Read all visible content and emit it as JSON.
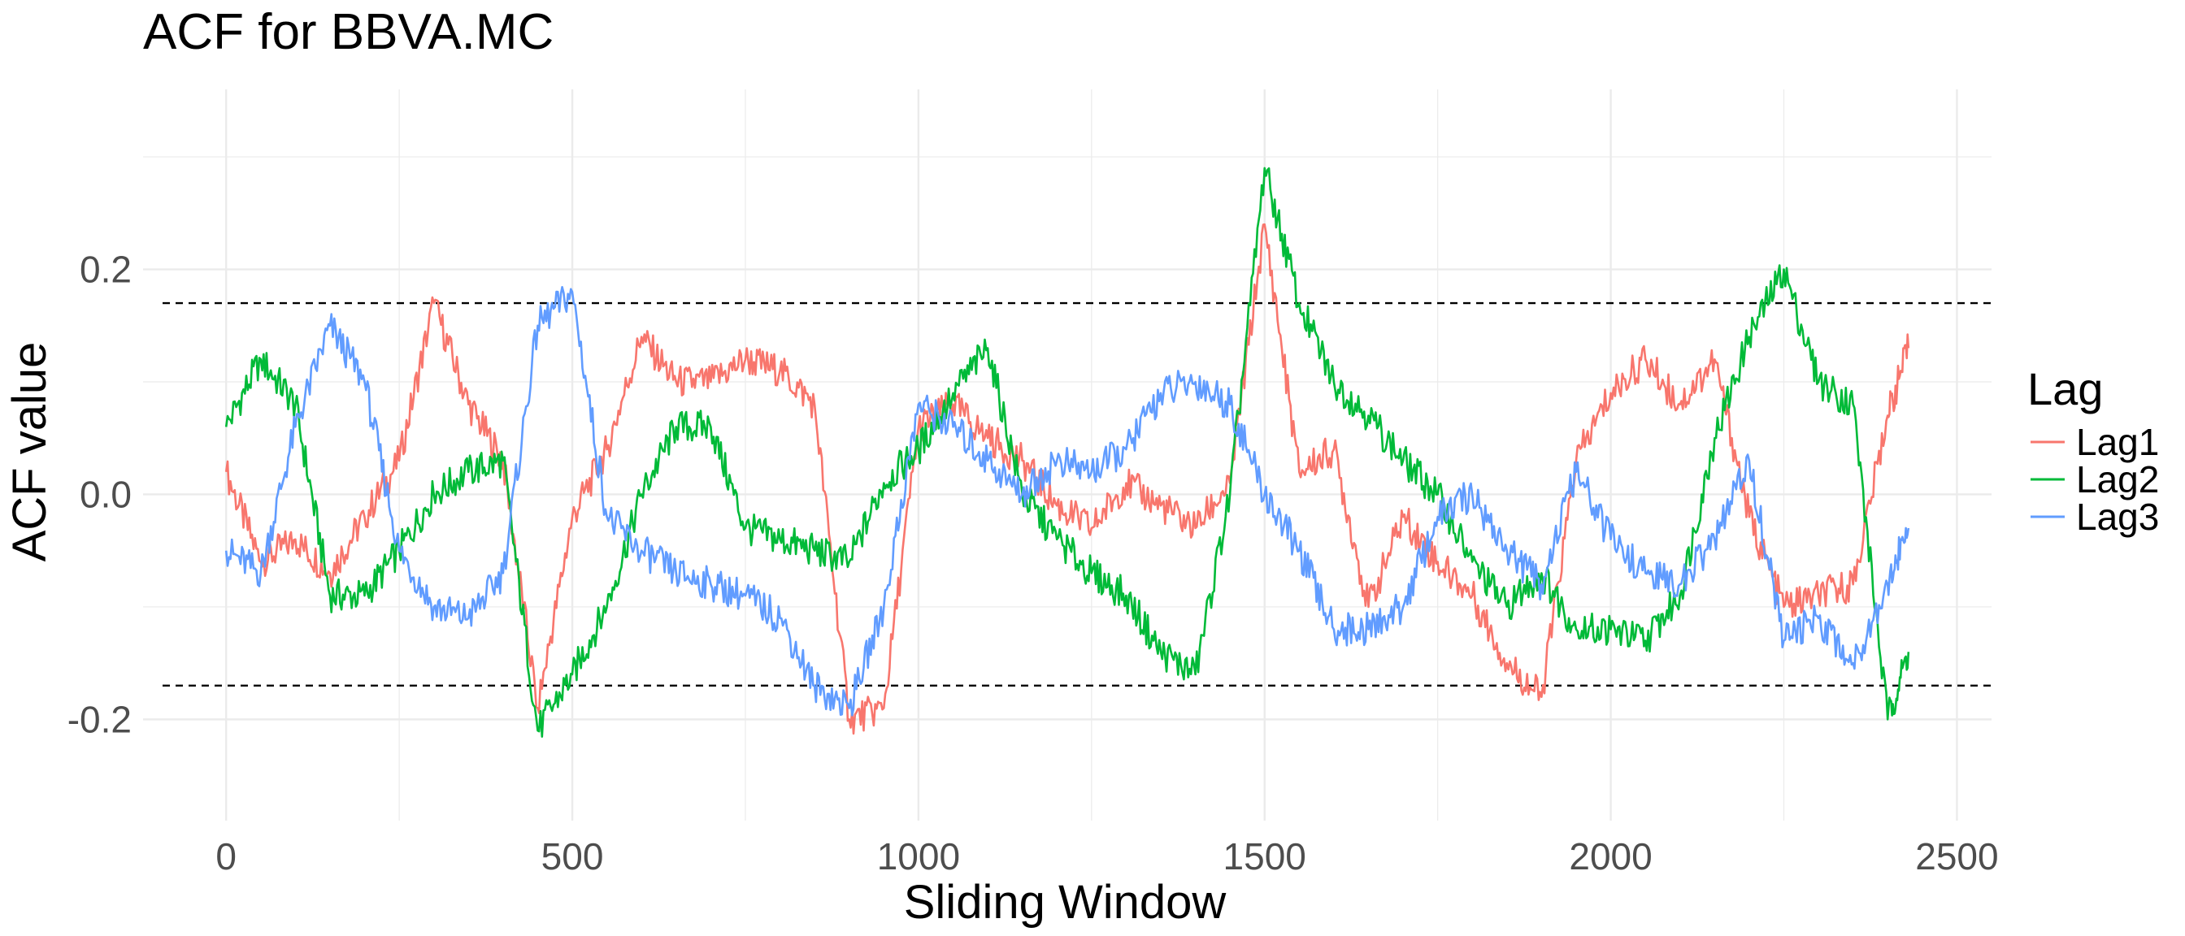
{
  "chart_data": {
    "type": "line",
    "title": "ACF for  BBVA.MC",
    "xlabel": "Sliding Window",
    "ylabel": "ACF value",
    "xlim": [
      -120,
      2550
    ],
    "ylim": [
      -0.29,
      0.36
    ],
    "x_ticks": [
      0,
      500,
      1000,
      1500,
      2000,
      2500
    ],
    "x_tick_labels": [
      "0",
      "500",
      "1000",
      "1500",
      "2000",
      "2500"
    ],
    "y_ticks": [
      -0.2,
      0.0,
      0.2
    ],
    "y_tick_labels": [
      "-0.2",
      "0.0",
      "0.2"
    ],
    "grid": true,
    "reference_lines": [
      0.17,
      -0.17
    ],
    "legend": {
      "title": "Lag",
      "position": "right"
    },
    "x": [
      0,
      50,
      100,
      150,
      200,
      250,
      300,
      350,
      400,
      450,
      500,
      550,
      600,
      650,
      700,
      750,
      800,
      850,
      900,
      950,
      1000,
      1050,
      1100,
      1150,
      1200,
      1250,
      1300,
      1350,
      1400,
      1450,
      1500,
      1550,
      1600,
      1650,
      1700,
      1750,
      1800,
      1850,
      1900,
      1950,
      2000,
      2050,
      2100,
      2150,
      2200,
      2250,
      2300,
      2350,
      2400,
      2430
    ],
    "series": [
      {
        "name": "Lag1",
        "color": "#F8766D",
        "values": [
          0.02,
          -0.06,
          -0.04,
          -0.07,
          -0.02,
          0.03,
          0.17,
          0.08,
          0.03,
          -0.19,
          -0.02,
          0.04,
          0.14,
          0.1,
          0.1,
          0.12,
          0.11,
          0.08,
          -0.2,
          -0.19,
          0.06,
          0.08,
          0.05,
          0.03,
          -0.01,
          -0.03,
          0.01,
          -0.01,
          -0.03,
          0.01,
          0.24,
          0.02,
          0.04,
          -0.1,
          -0.02,
          -0.06,
          -0.09,
          -0.15,
          -0.18,
          0.03,
          0.09,
          0.12,
          0.08,
          0.12,
          -0.02,
          -0.1,
          -0.09,
          -0.08,
          0.07,
          0.13
        ]
      },
      {
        "name": "Lag2",
        "color": "#00BA38",
        "values": [
          0.06,
          0.12,
          0.08,
          -0.09,
          -0.09,
          -0.05,
          0.0,
          0.02,
          0.03,
          -0.21,
          -0.16,
          -0.1,
          0.0,
          0.06,
          0.06,
          -0.03,
          -0.04,
          -0.05,
          -0.06,
          0.01,
          0.04,
          0.09,
          0.13,
          0.0,
          -0.04,
          -0.07,
          -0.09,
          -0.14,
          -0.16,
          0.0,
          0.29,
          0.17,
          0.1,
          0.07,
          0.03,
          0.0,
          -0.06,
          -0.1,
          -0.07,
          -0.12,
          -0.12,
          -0.13,
          -0.09,
          0.05,
          0.14,
          0.2,
          0.1,
          0.08,
          -0.2,
          -0.14
        ]
      },
      {
        "name": "Lag3",
        "color": "#619CFF",
        "values": [
          -0.05,
          -0.07,
          0.06,
          0.15,
          0.1,
          -0.05,
          -0.1,
          -0.11,
          -0.07,
          0.15,
          0.18,
          -0.02,
          -0.05,
          -0.07,
          -0.08,
          -0.09,
          -0.11,
          -0.17,
          -0.19,
          -0.1,
          0.08,
          0.06,
          0.03,
          0.0,
          0.03,
          0.02,
          0.04,
          0.09,
          0.1,
          0.08,
          0.0,
          -0.05,
          -0.12,
          -0.12,
          -0.1,
          -0.02,
          0.0,
          -0.05,
          -0.08,
          0.02,
          -0.04,
          -0.07,
          -0.08,
          -0.04,
          0.03,
          -0.13,
          -0.11,
          -0.15,
          -0.08,
          -0.03
        ]
      }
    ]
  }
}
